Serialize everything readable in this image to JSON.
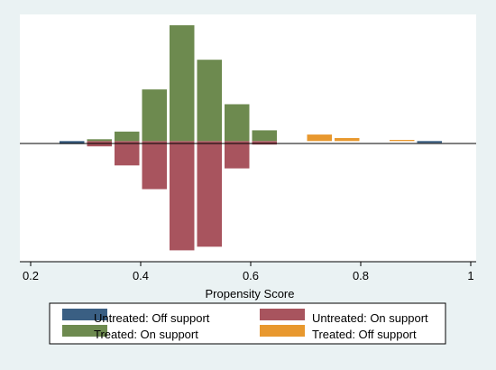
{
  "chart_data": {
    "type": "bar",
    "subtype": "mirrored-histogram",
    "xlabel": "Propensity Score",
    "xlim": [
      0.2,
      1.0
    ],
    "x_ticks": [
      "0.2",
      "0.4",
      "0.6",
      "0.8",
      "1"
    ],
    "bin_width": 0.05,
    "ylim": [
      -18.5,
      19.5
    ],
    "y_axis_shown": false,
    "grid": false,
    "legend_position": "bottom",
    "series": [
      {
        "name": "Untreated: Off support",
        "color": "#3a5f83",
        "direction": "down",
        "bins": [
          {
            "x": 0.275,
            "value": 0.5
          },
          {
            "x": 0.925,
            "value": 0.3
          }
        ]
      },
      {
        "name": "Untreated: On support",
        "color": "#a8545e",
        "direction": "down",
        "bins": [
          {
            "x": 0.325,
            "value": 0.9
          },
          {
            "x": 0.375,
            "value": 4.1
          },
          {
            "x": 0.425,
            "value": 8.1
          },
          {
            "x": 0.475,
            "value": 18.4
          },
          {
            "x": 0.525,
            "value": 17.8
          },
          {
            "x": 0.575,
            "value": 4.6
          },
          {
            "x": 0.625,
            "value": 0.6
          }
        ]
      },
      {
        "name": "Treated: On support",
        "color": "#6d8a4f",
        "direction": "up",
        "bins": [
          {
            "x": 0.325,
            "value": 0.3
          },
          {
            "x": 0.375,
            "value": 1.6
          },
          {
            "x": 0.425,
            "value": 8.7
          },
          {
            "x": 0.475,
            "value": 19.5
          },
          {
            "x": 0.525,
            "value": 13.7
          },
          {
            "x": 0.575,
            "value": 6.2
          },
          {
            "x": 0.625,
            "value": 1.8
          }
        ]
      },
      {
        "name": "Treated: Off support",
        "color": "#e8982e",
        "direction": "up",
        "bins": [
          {
            "x": 0.725,
            "value": 1.1
          },
          {
            "x": 0.775,
            "value": 0.5
          },
          {
            "x": 0.875,
            "value": 0.2
          }
        ]
      }
    ],
    "legend": [
      "Untreated: Off support",
      "Untreated: On support",
      "Treated: On support",
      "Treated: Off support"
    ]
  }
}
